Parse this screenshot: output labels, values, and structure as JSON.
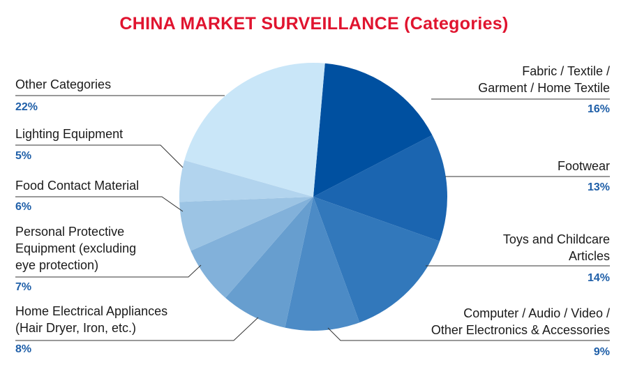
{
  "chart_data": {
    "type": "pie",
    "title": "CHINA MARKET SURVEILLANCE (Categories)",
    "slices": [
      {
        "label": "Fabric / Textile / Garment / Home Textile",
        "value": 16,
        "value_label": "16%",
        "color": "#0050a0"
      },
      {
        "label": "Footwear",
        "value": 13,
        "value_label": "13%",
        "color": "#1b65b0"
      },
      {
        "label": "Toys and Childcare Articles",
        "value": 14,
        "value_label": "14%",
        "color": "#3278bb"
      },
      {
        "label": "Computer / Audio / Video / Other Electronics & Accessories",
        "value": 9,
        "value_label": "9%",
        "color": "#4c8bc6"
      },
      {
        "label": "Home Electrical Appliances (Hair Dryer, Iron, etc.)",
        "value": 8,
        "value_label": "8%",
        "color": "#679ecf"
      },
      {
        "label": "Personal Protective Equipment (excluding eye protection)",
        "value": 7,
        "value_label": "7%",
        "color": "#82b1da"
      },
      {
        "label": "Food Contact Material",
        "value": 6,
        "value_label": "6%",
        "color": "#9cc4e4"
      },
      {
        "label": "Lighting Equipment",
        "value": 5,
        "value_label": "5%",
        "color": "#b2d4ee"
      },
      {
        "label": "Other Categories",
        "value": 22,
        "value_label": "22%",
        "color": "#c9e6f8"
      }
    ]
  },
  "labels": {
    "fabric": [
      "Fabric / Textile /",
      "Garment / Home Textile"
    ],
    "footwear": [
      "Footwear"
    ],
    "toys": [
      "Toys and Childcare",
      "Articles"
    ],
    "computer": [
      "Computer / Audio / Video /",
      "Other Electronics & Accessories"
    ],
    "appliances": [
      "Home Electrical Appliances",
      "(Hair Dryer, Iron, etc.)"
    ],
    "ppe": [
      "Personal Protective",
      "Equipment (excluding",
      "eye protection)"
    ],
    "food": [
      "Food Contact Material"
    ],
    "lighting": [
      "Lighting Equipment"
    ],
    "other": [
      "Other Categories"
    ]
  }
}
